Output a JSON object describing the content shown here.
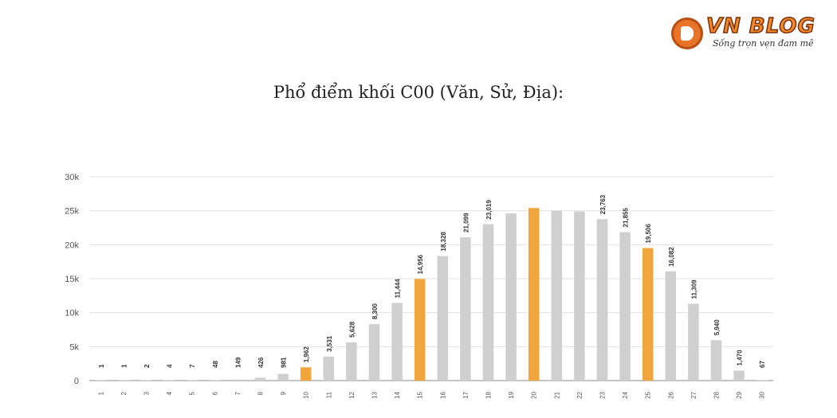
{
  "logo": {
    "name": "VN BLOG",
    "slogan": "Sống trọn vẹn đam mê"
  },
  "title": "Phổ điểm khối C00 (Văn, Sử, Địa):",
  "chart_data": {
    "type": "bar",
    "title": "Phổ điểm khối C00 (Văn, Sử, Địa):",
    "xlabel": "",
    "ylabel": "",
    "ylim": [
      0,
      30000
    ],
    "grid": true,
    "legend": "none",
    "y_ticks": [
      "0",
      "5k",
      "10k",
      "15k",
      "20k",
      "25k",
      "30k"
    ],
    "y_tick_values": [
      0,
      5000,
      10000,
      15000,
      20000,
      25000,
      30000
    ],
    "categories": [
      "1",
      "2",
      "3",
      "4",
      "5",
      "6",
      "7",
      "8",
      "9",
      "10",
      "11",
      "12",
      "13",
      "14",
      "15",
      "16",
      "17",
      "18",
      "19",
      "20",
      "21",
      "22",
      "23",
      "24",
      "25",
      "26",
      "27",
      "28",
      "29",
      "30"
    ],
    "values": [
      1,
      1,
      2,
      4,
      7,
      48,
      149,
      426,
      981,
      1962,
      3531,
      5628,
      8300,
      11444,
      14956,
      18328,
      21099,
      23019,
      24600,
      25400,
      25000,
      24900,
      23763,
      21855,
      19506,
      16082,
      11309,
      5940,
      1470,
      67
    ],
    "labels": [
      "1",
      "1",
      "2",
      "4",
      "7",
      "48",
      "149",
      "426",
      "981",
      "1,962",
      "3,531",
      "5,628",
      "8,300",
      "11,444",
      "14,956",
      "18,328",
      "21,099",
      "23,019",
      "",
      "",
      "",
      "",
      "23,763",
      "21,855",
      "19,506",
      "16,082",
      "11,309",
      "5,940",
      "1,470",
      "67"
    ],
    "highlighted_categories": [
      "10",
      "15",
      "20",
      "25"
    ],
    "colors": {
      "bar": "#cfcfcf",
      "highlight": "#f0a63c",
      "grid": "#e2e2e2",
      "axis": "#888888",
      "label": "#333333"
    }
  }
}
